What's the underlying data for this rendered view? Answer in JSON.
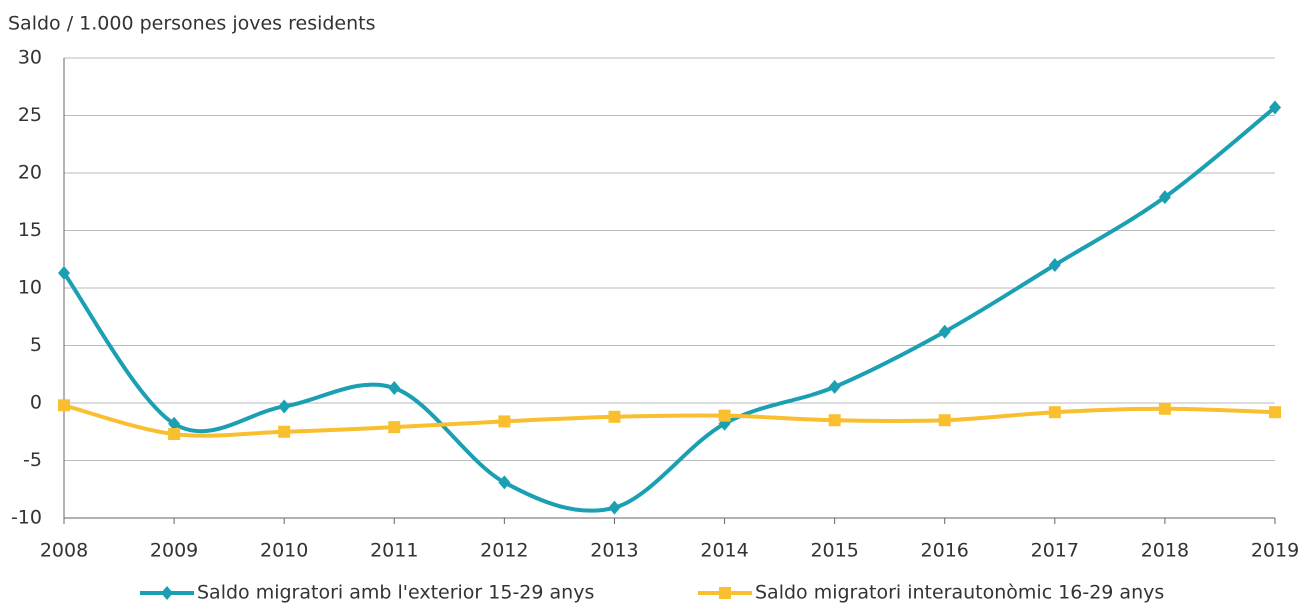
{
  "chart_data": {
    "type": "line",
    "title": "Saldo / 1.000 persones joves residents",
    "categories": [
      "2008",
      "2009",
      "2010",
      "2011",
      "2012",
      "2013",
      "2014",
      "2015",
      "2016",
      "2017",
      "2018",
      "2019"
    ],
    "series": [
      {
        "name": "Saldo migratori amb l'exterior 15-29 anys",
        "color": "#1a9fb3",
        "marker": "diamond",
        "values": [
          11.3,
          -1.8,
          -0.3,
          1.3,
          -6.9,
          -9.1,
          -1.8,
          1.4,
          6.2,
          12.0,
          17.9,
          25.7
        ]
      },
      {
        "name": "Saldo migratori interautonòmic 16-29 anys",
        "color": "#f9bf2e",
        "marker": "square",
        "values": [
          -0.2,
          -2.7,
          -2.5,
          -2.1,
          -1.6,
          -1.2,
          -1.1,
          -1.5,
          -1.5,
          -0.8,
          -0.5,
          -0.8
        ]
      }
    ],
    "ylim": [
      -10,
      30
    ],
    "yticks": [
      -10,
      -5,
      0,
      5,
      10,
      15,
      20,
      25,
      30
    ],
    "grid": true,
    "smooth": true,
    "legend": "bottom"
  }
}
